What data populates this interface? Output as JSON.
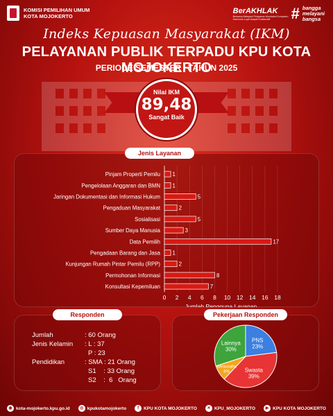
{
  "header": {
    "org_line1": "KOMISI PEMILIHAN UMUM",
    "org_line2": "KOTA MOJOKERTO",
    "berakhlak": "BerAKHLAK",
    "berakhlak_sub": "Bersama Melayani Pelayanan Akuntabel Kompeten Harmonis Loyal Adaptif Kolaboratif",
    "hash": "#",
    "bangga1": "bangga",
    "bangga2": "melayani",
    "bangga3": "bangsa"
  },
  "title": {
    "script": "Indeks Kepuasan Masyarakat (IKM)",
    "main": "PELAYANAN PUBLIK TERPADU KPU KOTA MOJOKERTO",
    "period": "PERIODE SEMESTER I TAHUN 2025"
  },
  "ikm": {
    "label": "Nilai IKM",
    "value": "89,48",
    "category": "Sangat Baik"
  },
  "sections": {
    "jenis": "Jenis Layanan",
    "responden": "Responden",
    "pekerjaan": "Pekerjaan Responden"
  },
  "chart_data": [
    {
      "type": "bar",
      "orientation": "horizontal",
      "title": "Jenis Layanan",
      "categories": [
        "Pinjam Properti Pemilu",
        "Pengelolaan Anggaran dan BMN",
        "Jaringan Dokumentasi dan Informasi Hukum",
        "Pengaduan Masyarakat",
        "Sosialisasi",
        "Sumber Daya Manusia",
        "Data Pemilih",
        "Pengadaan Barang dan Jasa",
        "Kunjungan Rumah Pintar Pemilu (RPP)",
        "Permohonan Informasi",
        "Konsultasi Kepemiluan"
      ],
      "values": [
        1,
        1,
        5,
        2,
        5,
        3,
        17,
        1,
        2,
        8,
        7
      ],
      "xlabel": "Jumlah Pengguna Layanan",
      "xlim": [
        0,
        18
      ],
      "xticks": [
        0,
        2,
        4,
        6,
        8,
        10,
        12,
        14,
        16,
        18
      ],
      "bar_color": "#d81a14"
    },
    {
      "type": "pie",
      "title": "Pekerjaan Responden",
      "slices": [
        {
          "name": "PNS",
          "value": 23,
          "label": "23%",
          "color": "#3b7fe0"
        },
        {
          "name": "Swasta",
          "value": 39,
          "label": "39%",
          "color": "#e83434"
        },
        {
          "name": "Wirausaha",
          "value": 8,
          "label": "8%",
          "color": "#f5a51e"
        },
        {
          "name": "Lainnya",
          "value": 30,
          "label": "30%",
          "color": "#3ea43c"
        }
      ]
    }
  ],
  "responden": {
    "jumlah_label": "Jumlah",
    "jumlah_value": ": 60 Orang",
    "jk_label": "Jenis Kelamin",
    "jk_l": ": L : 37",
    "jk_p": "P : 23",
    "pend_label": "Pendidikan",
    "pend_sma": ": SMA : 21 Orang",
    "pend_s1": "S1    : 33 Orang",
    "pend_s2": "S2    :  6   Orang"
  },
  "footer": [
    {
      "icon": "globe-icon",
      "glyph": "◉",
      "text": "kota-mojokerto.kpu.go.id"
    },
    {
      "icon": "instagram-icon",
      "glyph": "◎",
      "text": "kpukotamojokerto"
    },
    {
      "icon": "facebook-icon",
      "glyph": "f",
      "text": "KPU KOTA MOJOKERTO"
    },
    {
      "icon": "x-twitter-icon",
      "glyph": "✕",
      "text": "KPU_MOJOKERTO"
    },
    {
      "icon": "youtube-icon",
      "glyph": "▶",
      "text": "KPU KOTA MOJOKERTO"
    }
  ]
}
